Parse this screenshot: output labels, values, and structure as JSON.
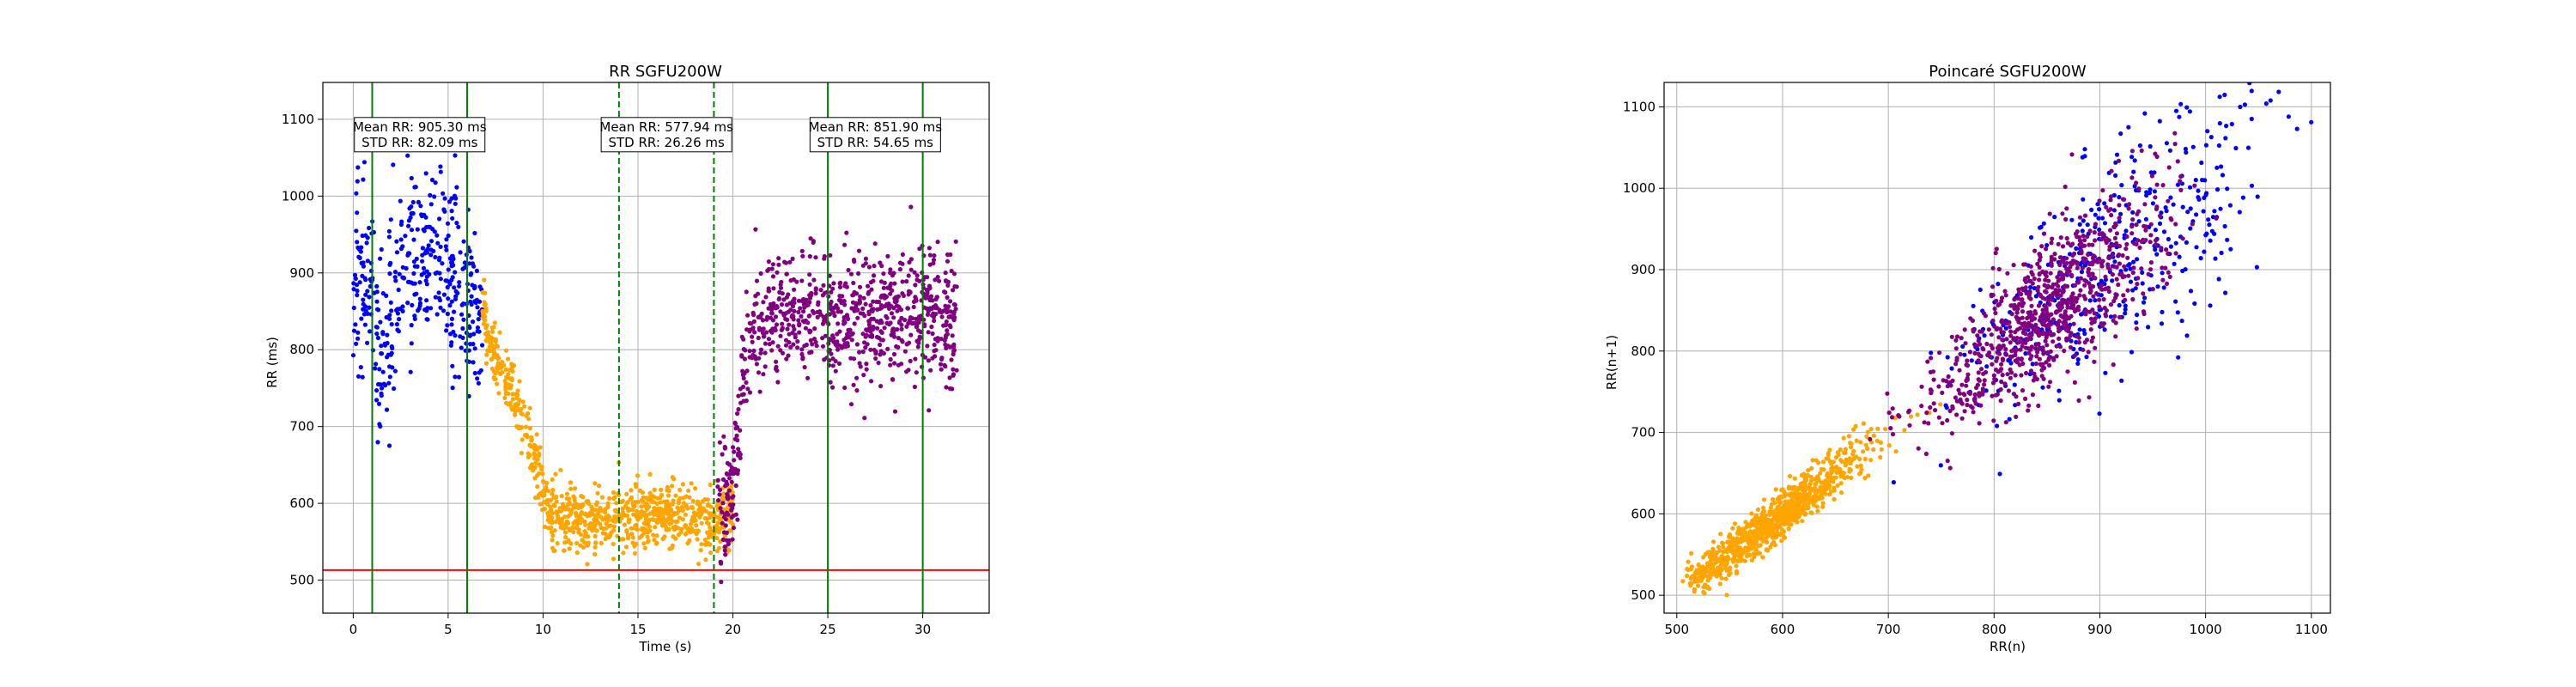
{
  "colors": {
    "blue": "#0000ff",
    "orange": "#ffa500",
    "purple": "#800080",
    "green": "#008000",
    "red": "#ff0000",
    "grid": "#b0b0b0"
  },
  "chart_data": [
    {
      "type": "scatter",
      "title": "RR SGFU200W",
      "xlabel": "Time (s)",
      "ylabel": "RR (ms)",
      "xlim": [
        -1.6,
        33.5
      ],
      "ylim": [
        457,
        1148
      ],
      "xticks": [
        0,
        5,
        10,
        15,
        20,
        25,
        30
      ],
      "yticks": [
        500,
        600,
        700,
        800,
        900,
        1000,
        1100
      ],
      "grid": true,
      "segments": [
        {
          "color": "blue",
          "x_start": 0.0,
          "x_end": 6.8,
          "n": 420,
          "mean_profile": [
            [
              0.0,
              870
            ],
            [
              0.6,
              925
            ],
            [
              1.0,
              880
            ],
            [
              1.3,
              770
            ],
            [
              1.8,
              820
            ],
            [
              2.5,
              900
            ],
            [
              3.5,
              930
            ],
            [
              4.5,
              920
            ],
            [
              5.5,
              890
            ],
            [
              6.0,
              860
            ],
            [
              6.8,
              820
            ]
          ],
          "std": 80
        },
        {
          "color": "orange",
          "x_start": 6.8,
          "x_end": 20.0,
          "n": 900,
          "mean_profile": [
            [
              6.8,
              840
            ],
            [
              7.5,
              790
            ],
            [
              8.5,
              740
            ],
            [
              9.5,
              660
            ],
            [
              10.3,
              590
            ],
            [
              11.5,
              575
            ],
            [
              14.0,
              580
            ],
            [
              16.0,
              585
            ],
            [
              18.0,
              580
            ],
            [
              19.0,
              570
            ],
            [
              20.0,
              590
            ]
          ],
          "std": 28
        },
        {
          "color": "purple",
          "x_start": 19.2,
          "x_end": 31.8,
          "n": 880,
          "mean_profile": [
            [
              19.2,
              580
            ],
            [
              20.0,
              620
            ],
            [
              20.5,
              740
            ],
            [
              21.0,
              830
            ],
            [
              22.5,
              850
            ],
            [
              25.0,
              840
            ],
            [
              28.0,
              845
            ],
            [
              30.0,
              855
            ],
            [
              31.8,
              830
            ]
          ],
          "std": 55
        }
      ],
      "vlines": [
        {
          "x": 1,
          "color": "green",
          "style": "solid"
        },
        {
          "x": 6,
          "color": "green",
          "style": "solid"
        },
        {
          "x": 14,
          "color": "green",
          "style": "dashed"
        },
        {
          "x": 19,
          "color": "green",
          "style": "dashed"
        },
        {
          "x": 25,
          "color": "green",
          "style": "solid"
        },
        {
          "x": 30,
          "color": "green",
          "style": "solid"
        }
      ],
      "hline": {
        "y": 513,
        "color": "red"
      },
      "annotations": [
        {
          "x": 3.5,
          "y": 1080,
          "line1": "Mean RR: 905.30 ms",
          "line2": "STD RR: 82.09 ms"
        },
        {
          "x": 16.5,
          "y": 1080,
          "line1": "Mean RR: 577.94 ms",
          "line2": "STD RR: 26.26 ms"
        },
        {
          "x": 27.5,
          "y": 1080,
          "line1": "Mean RR: 851.90 ms",
          "line2": "STD RR: 54.65 ms"
        }
      ]
    },
    {
      "type": "scatter",
      "title": "Poincaré SGFU200W",
      "xlabel": "RR(n)",
      "ylabel": "RR(n+1)",
      "xlim": [
        488,
        1118
      ],
      "ylim": [
        478,
        1130
      ],
      "xticks": [
        500,
        600,
        700,
        800,
        900,
        1000,
        1100
      ],
      "yticks": [
        500,
        600,
        700,
        800,
        900,
        1000,
        1100
      ],
      "grid": true,
      "clouds": [
        {
          "color": "orange",
          "n": 900,
          "rr_range": [
            515,
            980
          ],
          "center": 590,
          "spread": 45,
          "perp_noise": 18
        },
        {
          "color": "blue",
          "n": 420,
          "rr_range": [
            700,
            1095
          ],
          "center": 910,
          "spread": 80,
          "perp_noise": 55
        },
        {
          "color": "purple",
          "n": 880,
          "rr_range": [
            540,
            1000
          ],
          "center": 850,
          "spread": 55,
          "perp_noise": 40
        }
      ]
    }
  ]
}
